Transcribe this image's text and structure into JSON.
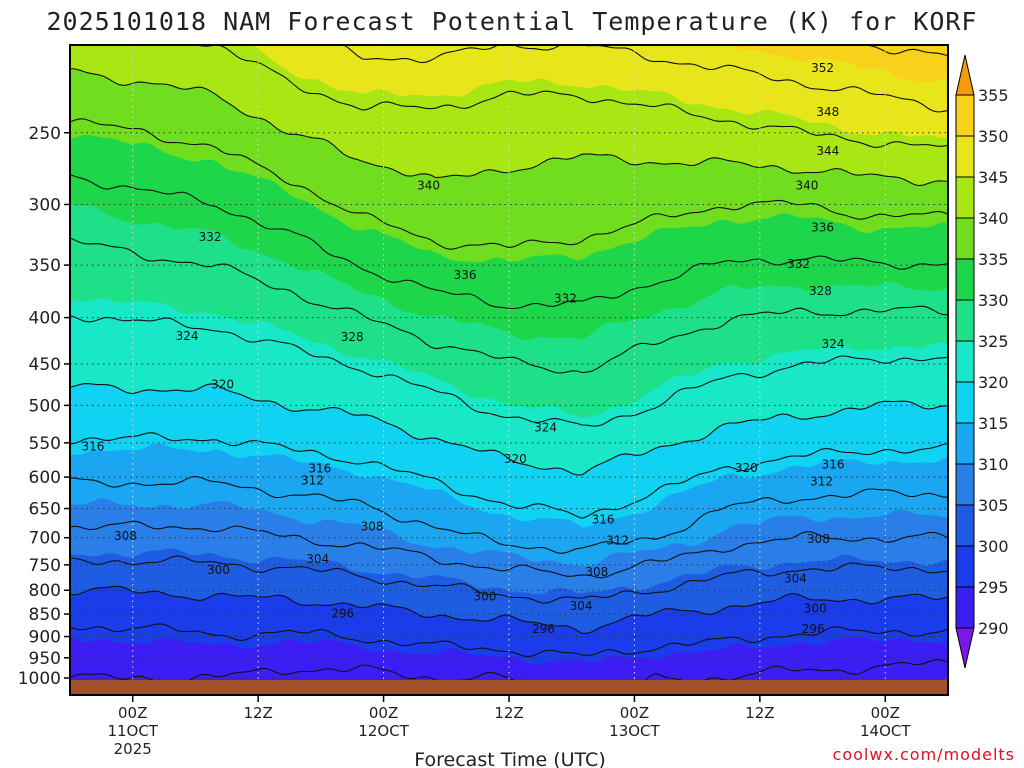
{
  "chart_data": {
    "type": "heatmap",
    "title": "2025101018 NAM Forecast Potential Temperature (K) for KORF",
    "xlabel": "Forecast Time (UTC)",
    "ylabel": "",
    "x_ticks": [
      {
        "hour": 6,
        "l1": "00Z",
        "l2": "11OCT",
        "l3": "2025"
      },
      {
        "hour": 18,
        "l1": "12Z",
        "l2": "",
        "l3": ""
      },
      {
        "hour": 30,
        "l1": "00Z",
        "l2": "12OCT",
        "l3": ""
      },
      {
        "hour": 42,
        "l1": "12Z",
        "l2": "",
        "l3": ""
      },
      {
        "hour": 54,
        "l1": "00Z",
        "l2": "13OCT",
        "l3": ""
      },
      {
        "hour": 66,
        "l1": "12Z",
        "l2": "",
        "l3": ""
      },
      {
        "hour": 78,
        "l1": "00Z",
        "l2": "14OCT",
        "l3": ""
      }
    ],
    "xlim": [
      0,
      84
    ],
    "y_ticks": [
      250,
      300,
      350,
      400,
      450,
      500,
      550,
      600,
      650,
      700,
      750,
      800,
      850,
      900,
      950,
      1000
    ],
    "ylim_hPa": [
      1000,
      200
    ],
    "colorbar": {
      "levels": [
        290,
        295,
        300,
        305,
        310,
        315,
        320,
        325,
        330,
        335,
        340,
        345,
        350,
        355
      ],
      "colors": [
        "#7b18e6",
        "#3c1ef4",
        "#1a3ceb",
        "#1e5ce2",
        "#2a7ee8",
        "#1aa6f0",
        "#10d2f2",
        "#18e8c8",
        "#1ee088",
        "#1ed64a",
        "#70de1e",
        "#a8e614",
        "#e8e61a",
        "#f8d21a",
        "#f49a10"
      ]
    },
    "series": [
      {
        "name": "theta_surface_and_1000hPa",
        "values": [
          292,
          292,
          292,
          291,
          291,
          292,
          292,
          293,
          292,
          292,
          291,
          291,
          290
        ]
      },
      {
        "name": "theta_850hPa",
        "values": [
          297,
          297,
          298,
          298,
          299,
          300,
          301,
          302,
          300,
          299,
          298,
          298,
          298
        ]
      },
      {
        "name": "theta_700hPa",
        "values": [
          307,
          307,
          307,
          308,
          309,
          311,
          313,
          314,
          312,
          309,
          308,
          308,
          308
        ]
      },
      {
        "name": "theta_500hPa",
        "values": [
          319,
          319,
          319,
          320,
          321,
          323,
          325,
          326,
          324,
          322,
          321,
          320,
          320
        ]
      },
      {
        "name": "theta_300hPa",
        "values": [
          330,
          331,
          332,
          334,
          337,
          339,
          339,
          338,
          337,
          336,
          336,
          337,
          337
        ]
      },
      {
        "name": "theta_250hPa",
        "values": [
          335,
          336,
          337,
          340,
          342,
          342,
          341,
          341,
          342,
          343,
          344,
          345,
          346
        ]
      }
    ],
    "contour_labels": [
      {
        "text": "352",
        "hour": 72.0,
        "p": 212
      },
      {
        "text": "348",
        "hour": 72.5,
        "p": 237
      },
      {
        "text": "344",
        "hour": 72.5,
        "p": 262
      },
      {
        "text": "340",
        "hour": 34.3,
        "p": 286
      },
      {
        "text": "340",
        "hour": 70.5,
        "p": 286
      },
      {
        "text": "336",
        "hour": 72.0,
        "p": 318
      },
      {
        "text": "336",
        "hour": 37.8,
        "p": 359
      },
      {
        "text": "332",
        "hour": 13.4,
        "p": 326
      },
      {
        "text": "332",
        "hour": 69.7,
        "p": 349
      },
      {
        "text": "332",
        "hour": 47.4,
        "p": 381
      },
      {
        "text": "328",
        "hour": 71.8,
        "p": 374
      },
      {
        "text": "328",
        "hour": 27.0,
        "p": 420
      },
      {
        "text": "324",
        "hour": 11.2,
        "p": 419
      },
      {
        "text": "324",
        "hour": 73.0,
        "p": 428
      },
      {
        "text": "324",
        "hour": 45.5,
        "p": 529
      },
      {
        "text": "320",
        "hour": 14.6,
        "p": 474
      },
      {
        "text": "320",
        "hour": 42.6,
        "p": 573
      },
      {
        "text": "320",
        "hour": 64.7,
        "p": 586
      },
      {
        "text": "316",
        "hour": 2.2,
        "p": 555
      },
      {
        "text": "316",
        "hour": 23.9,
        "p": 587
      },
      {
        "text": "316",
        "hour": 73.0,
        "p": 581
      },
      {
        "text": "316",
        "hour": 51.0,
        "p": 668
      },
      {
        "text": "312",
        "hour": 23.2,
        "p": 605
      },
      {
        "text": "312",
        "hour": 71.9,
        "p": 607
      },
      {
        "text": "312",
        "hour": 52.4,
        "p": 705
      },
      {
        "text": "308",
        "hour": 5.3,
        "p": 697
      },
      {
        "text": "308",
        "hour": 28.9,
        "p": 680
      },
      {
        "text": "308",
        "hour": 71.6,
        "p": 702
      },
      {
        "text": "308",
        "hour": 50.4,
        "p": 764
      },
      {
        "text": "304",
        "hour": 23.7,
        "p": 739
      },
      {
        "text": "304",
        "hour": 69.4,
        "p": 776
      },
      {
        "text": "304",
        "hour": 48.9,
        "p": 833
      },
      {
        "text": "300",
        "hour": 14.2,
        "p": 760
      },
      {
        "text": "300",
        "hour": 39.7,
        "p": 813
      },
      {
        "text": "300",
        "hour": 71.3,
        "p": 838
      },
      {
        "text": "296",
        "hour": 45.3,
        "p": 883
      },
      {
        "text": "296",
        "hour": 71.1,
        "p": 883
      },
      {
        "text": "296",
        "hour": 26.1,
        "p": 849
      }
    ]
  },
  "footer": {
    "credit": "coolwx.com/modelts"
  }
}
